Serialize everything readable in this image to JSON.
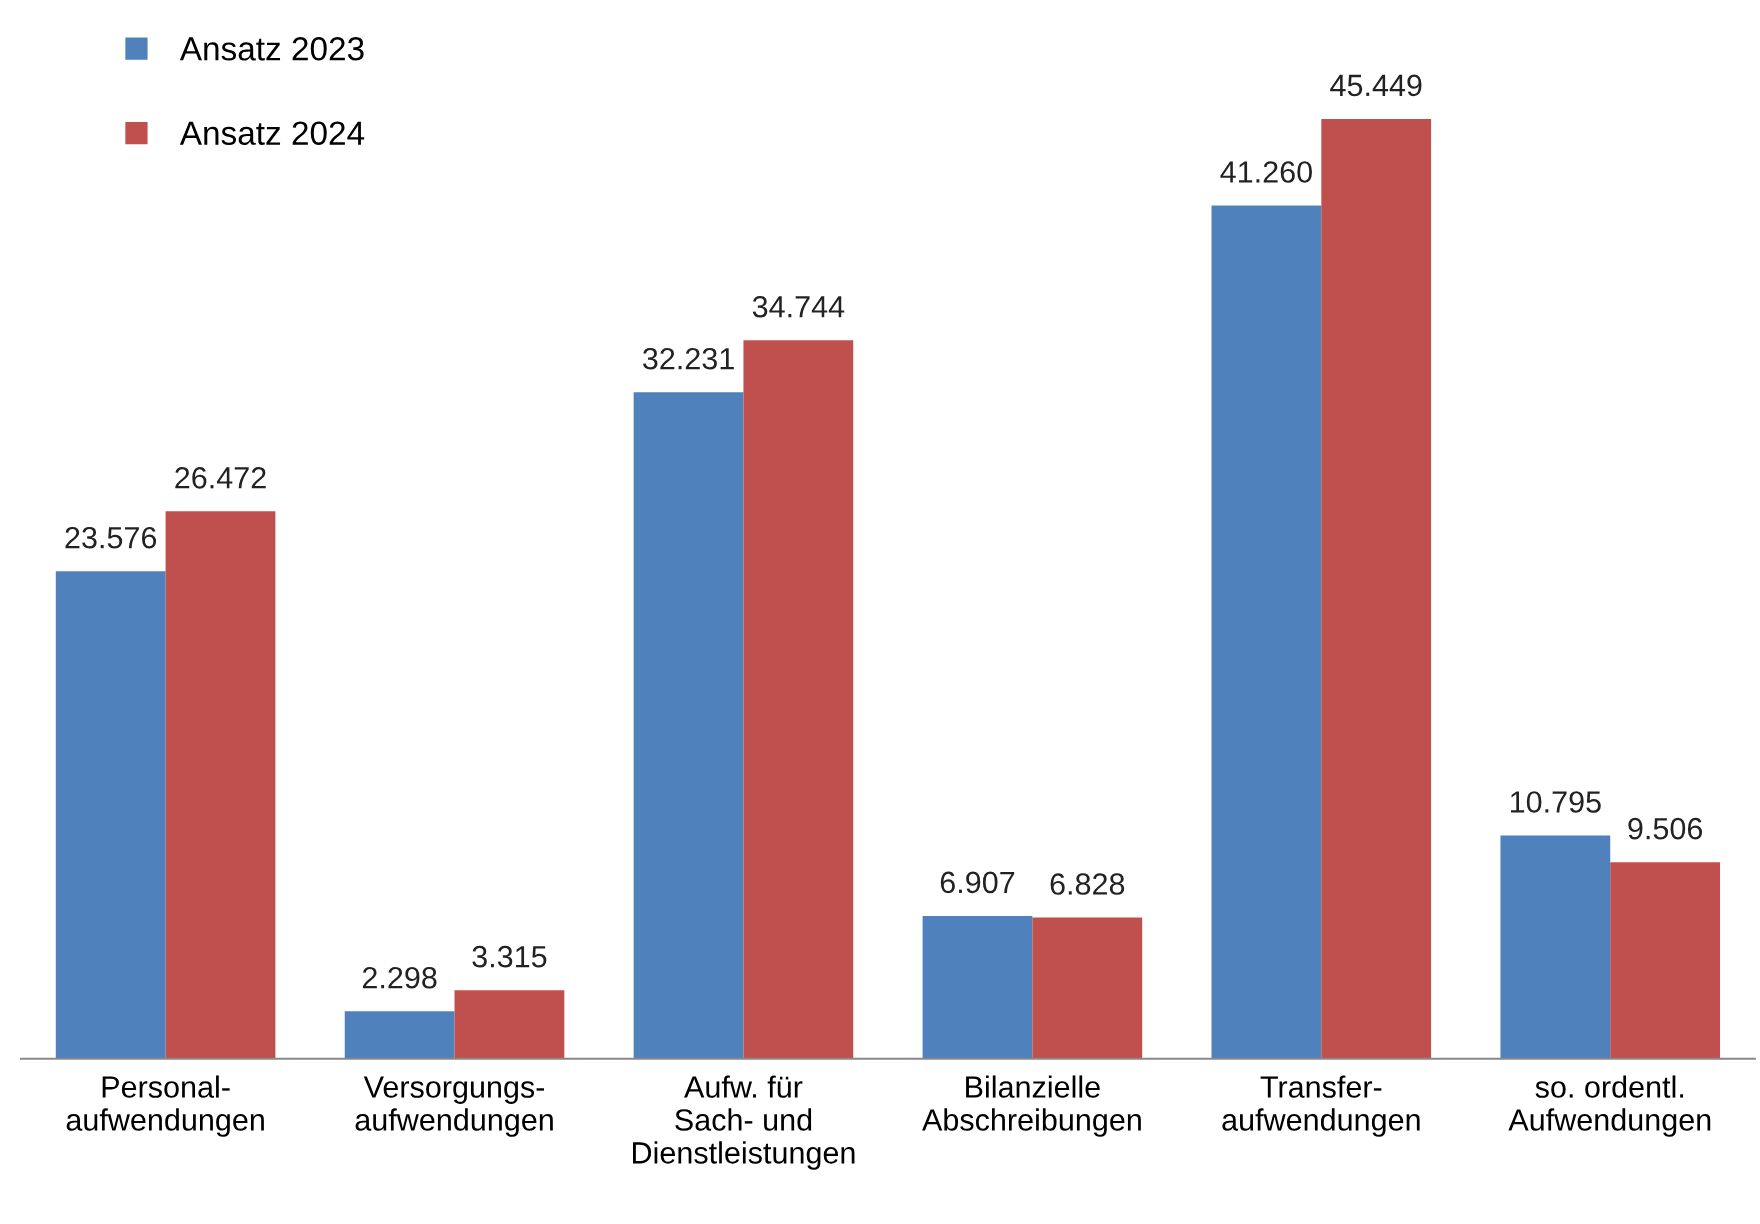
{
  "chart_data": {
    "type": "bar",
    "categories": [
      "Personal-\naufwendungen",
      "Versorgungs-\naufwendungen",
      "Aufw. für\nSach- und\nDienstleistungen",
      "Bilanzielle\nAbschreibungen",
      "Transfer-\naufwendungen",
      "so. ordentl.\nAufwendungen"
    ],
    "series": [
      {
        "name": "Ansatz 2023",
        "color": "#4f81bd",
        "values": [
          23576,
          2298,
          32231,
          6907,
          41260,
          10795
        ],
        "value_labels": [
          "23.576",
          "2.298",
          "32.231",
          "6.907",
          "41.260",
          "10.795"
        ]
      },
      {
        "name": "Ansatz 2024",
        "color": "#c0504d",
        "values": [
          26472,
          3315,
          34744,
          6828,
          45449,
          9506
        ],
        "value_labels": [
          "26.472",
          "3.315",
          "34.744",
          "6.828",
          "45.449",
          "9.506"
        ]
      }
    ],
    "legend": "top left",
    "grid": false
  }
}
